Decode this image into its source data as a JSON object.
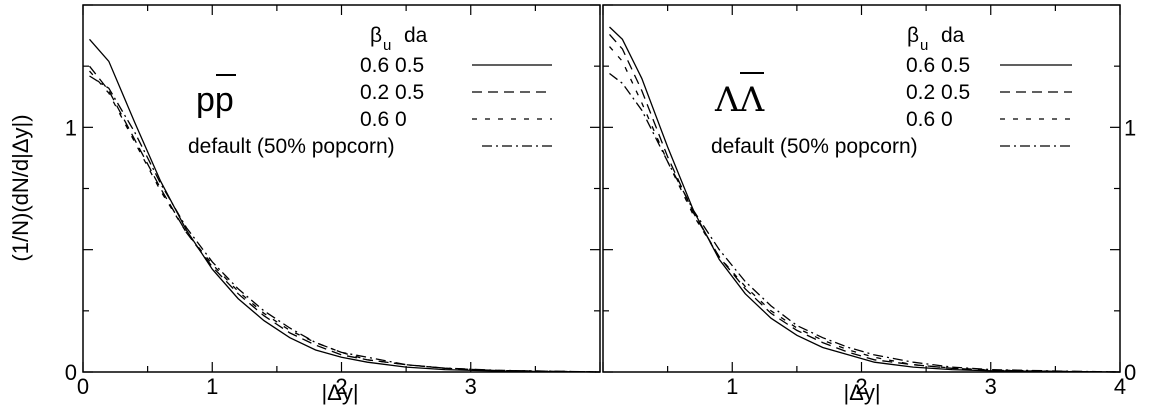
{
  "chart_data": {
    "type": "line",
    "ylabel": "(1/N)(dN/d|Δy|)",
    "legend_header": {
      "beta": "β",
      "beta_sub": "u",
      "da": "da"
    },
    "ylim": [
      0,
      1.5
    ],
    "yticks": [
      0,
      1
    ],
    "panels": [
      {
        "label_main": "p",
        "label_bar": "p",
        "xlabel": "|Δy|",
        "xlim": [
          0,
          4
        ],
        "xtick_labels": [
          {
            "value": 0,
            "text": "0"
          },
          {
            "value": 1,
            "text": "1"
          },
          {
            "value": 2,
            "text": "2"
          },
          {
            "value": 3,
            "text": "3"
          }
        ],
        "ytick_labels": [
          {
            "value": 0,
            "text": "0"
          },
          {
            "value": 1,
            "text": "1"
          }
        ],
        "legend": [
          {
            "text": "0.6 0.5",
            "style": "solid"
          },
          {
            "text": "0.2 0.5",
            "style": "dashed"
          },
          {
            "text": "0.6  0",
            "style": "dotted"
          },
          {
            "text": "default (50% popcorn)",
            "style": "dashdot"
          }
        ],
        "series": [
          {
            "style": "solid",
            "x": [
              0.05,
              0.2,
              0.4,
              0.6,
              0.8,
              1.0,
              1.2,
              1.4,
              1.6,
              1.8,
              2.0,
              2.2,
              2.5,
              2.8,
              3.2,
              4.0
            ],
            "y": [
              1.36,
              1.27,
              1.02,
              0.78,
              0.58,
              0.42,
              0.3,
              0.21,
              0.14,
              0.09,
              0.06,
              0.04,
              0.02,
              0.01,
              0.004,
              0.0
            ]
          },
          {
            "style": "dashed",
            "x": [
              0.05,
              0.2,
              0.4,
              0.6,
              0.8,
              1.0,
              1.2,
              1.4,
              1.6,
              1.8,
              2.0,
              2.2,
              2.5,
              2.8,
              3.2,
              4.0
            ],
            "y": [
              1.25,
              1.15,
              0.95,
              0.75,
              0.57,
              0.43,
              0.32,
              0.23,
              0.16,
              0.11,
              0.07,
              0.05,
              0.03,
              0.015,
              0.006,
              0.0
            ]
          },
          {
            "style": "dotted",
            "x": [
              0.05,
              0.2,
              0.4,
              0.6,
              0.8,
              1.0,
              1.2,
              1.4,
              1.6,
              1.8,
              2.0,
              2.2,
              2.5,
              2.8,
              3.2,
              4.0
            ],
            "y": [
              1.23,
              1.14,
              0.94,
              0.74,
              0.57,
              0.44,
              0.33,
              0.24,
              0.17,
              0.12,
              0.08,
              0.05,
              0.03,
              0.015,
              0.006,
              0.0
            ]
          },
          {
            "style": "dashdot",
            "x": [
              0.05,
              0.2,
              0.4,
              0.6,
              0.8,
              1.0,
              1.2,
              1.4,
              1.6,
              1.8,
              2.0,
              2.2,
              2.5,
              2.8,
              3.2,
              4.0
            ],
            "y": [
              1.21,
              1.16,
              0.98,
              0.77,
              0.59,
              0.45,
              0.34,
              0.25,
              0.18,
              0.12,
              0.08,
              0.06,
              0.03,
              0.016,
              0.007,
              0.0
            ]
          }
        ]
      },
      {
        "label_main": "Λ",
        "label_bar": "Λ",
        "xlabel": "|Δy|",
        "xlim": [
          0,
          4
        ],
        "xtick_labels": [
          {
            "value": 1,
            "text": "1"
          },
          {
            "value": 2,
            "text": "2"
          },
          {
            "value": 3,
            "text": "3"
          },
          {
            "value": 4,
            "text": "4"
          }
        ],
        "ytick_labels_right": [
          {
            "value": 0,
            "text": "0"
          },
          {
            "value": 1,
            "text": "1"
          }
        ],
        "legend": [
          {
            "text": "0.6 0.5",
            "style": "solid"
          },
          {
            "text": "0.2 0.5",
            "style": "dashed"
          },
          {
            "text": "0.6  0",
            "style": "dotted"
          },
          {
            "text": "default (50% popcorn)",
            "style": "dashdot"
          }
        ],
        "series": [
          {
            "style": "solid",
            "x": [
              0.05,
              0.15,
              0.3,
              0.5,
              0.7,
              0.9,
              1.1,
              1.3,
              1.5,
              1.7,
              1.9,
              2.1,
              2.4,
              2.7,
              3.0,
              3.5,
              4.0
            ],
            "y": [
              1.41,
              1.36,
              1.2,
              0.92,
              0.66,
              0.46,
              0.32,
              0.22,
              0.15,
              0.1,
              0.07,
              0.04,
              0.02,
              0.01,
              0.005,
              0.002,
              0.0
            ]
          },
          {
            "style": "dashed",
            "x": [
              0.05,
              0.15,
              0.3,
              0.5,
              0.7,
              0.9,
              1.1,
              1.3,
              1.5,
              1.7,
              1.9,
              2.1,
              2.4,
              2.7,
              3.0,
              3.5,
              4.0
            ],
            "y": [
              1.38,
              1.32,
              1.15,
              0.88,
              0.65,
              0.47,
              0.34,
              0.24,
              0.17,
              0.12,
              0.08,
              0.05,
              0.03,
              0.015,
              0.007,
              0.003,
              0.0
            ]
          },
          {
            "style": "dotted",
            "x": [
              0.05,
              0.15,
              0.3,
              0.5,
              0.7,
              0.9,
              1.1,
              1.3,
              1.5,
              1.7,
              1.9,
              2.1,
              2.4,
              2.7,
              3.0,
              3.5,
              4.0
            ],
            "y": [
              1.33,
              1.27,
              1.1,
              0.86,
              0.64,
              0.47,
              0.35,
              0.25,
              0.18,
              0.13,
              0.09,
              0.06,
              0.03,
              0.016,
              0.008,
              0.003,
              0.0
            ]
          },
          {
            "style": "dashdot",
            "x": [
              0.05,
              0.15,
              0.3,
              0.5,
              0.7,
              0.9,
              1.1,
              1.3,
              1.5,
              1.7,
              1.9,
              2.1,
              2.4,
              2.7,
              3.0,
              3.5,
              4.0
            ],
            "y": [
              1.22,
              1.18,
              1.07,
              0.86,
              0.66,
              0.5,
              0.37,
              0.27,
              0.19,
              0.14,
              0.1,
              0.07,
              0.04,
              0.02,
              0.01,
              0.004,
              0.0
            ]
          }
        ]
      }
    ]
  }
}
